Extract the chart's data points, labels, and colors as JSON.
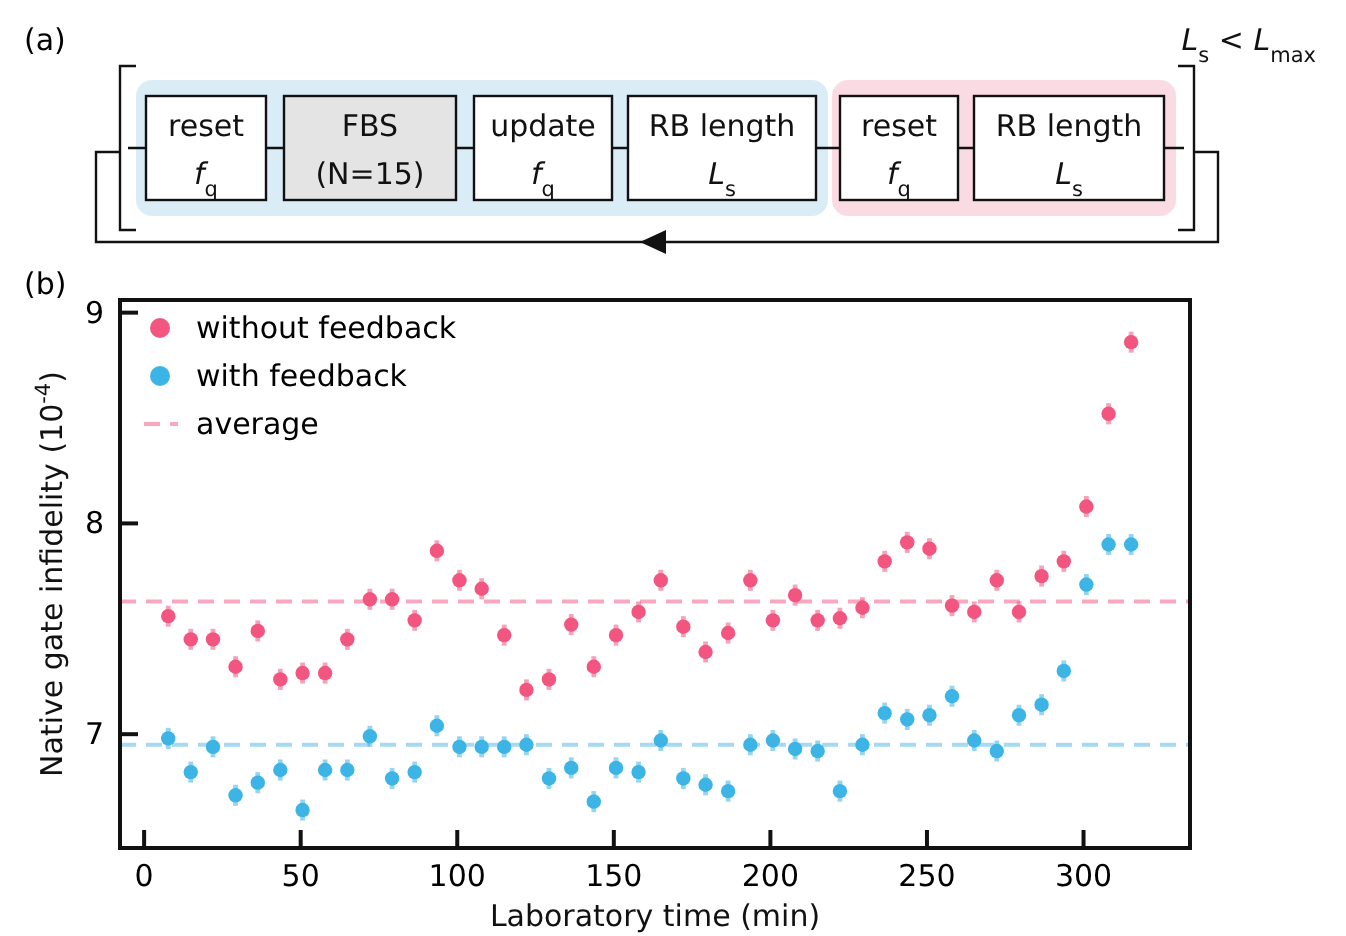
{
  "chart_data": [
    {
      "type": "other",
      "title": "(a)",
      "annotations": [
        "reset",
        "f$_{q}$",
        "FBS",
        "(N=15)",
        "update",
        "f$_{q}$",
        "RB length",
        "L$_{s}$",
        "reset",
        "f$_{q}$",
        "RB length",
        "L$_{s}$",
        "L$_{s}$ < L$_{max}$"
      ]
    },
    {
      "type": "scatter",
      "title": "(b)",
      "xlabel": "Laboratory time (min)",
      "ylabel": "Native gate infidelity (10$^{-4}$)",
      "x": [
        7.7,
        14.9,
        22.0,
        29.2,
        36.3,
        43.5,
        50.6,
        57.8,
        64.9,
        72.1,
        79.2,
        86.4,
        93.5,
        100.7,
        107.8,
        115.0,
        122.1,
        129.3,
        136.4,
        143.6,
        150.7,
        157.9,
        165.0,
        172.2,
        179.3,
        186.5,
        193.6,
        200.8,
        207.9,
        215.1,
        222.2,
        229.4,
        236.5,
        243.7,
        250.8,
        258.0,
        265.1,
        272.3,
        279.4,
        286.6,
        293.7,
        300.9,
        308.0,
        315.2
      ],
      "series": [
        {
          "name": "without feedback",
          "color": "#f2557f",
          "values": [
            7.56,
            7.45,
            7.45,
            7.32,
            7.49,
            7.26,
            7.29,
            7.29,
            7.45,
            7.64,
            7.64,
            7.54,
            7.87,
            7.73,
            7.69,
            7.47,
            7.21,
            7.26,
            7.52,
            7.32,
            7.47,
            7.58,
            7.73,
            7.51,
            7.39,
            7.48,
            7.73,
            7.54,
            7.66,
            7.54,
            7.55,
            7.6,
            7.82,
            7.91,
            7.88,
            7.61,
            7.58,
            7.73,
            7.58,
            7.75,
            7.82,
            8.08,
            8.52,
            8.86
          ],
          "errors": [
            0.05,
            0.05,
            0.05,
            0.05,
            0.05,
            0.05,
            0.05,
            0.05,
            0.05,
            0.05,
            0.05,
            0.05,
            0.05,
            0.05,
            0.05,
            0.05,
            0.05,
            0.05,
            0.05,
            0.05,
            0.05,
            0.05,
            0.05,
            0.05,
            0.05,
            0.05,
            0.05,
            0.05,
            0.05,
            0.05,
            0.05,
            0.05,
            0.05,
            0.05,
            0.05,
            0.05,
            0.05,
            0.05,
            0.05,
            0.05,
            0.05,
            0.05,
            0.05,
            0.05
          ]
        },
        {
          "name": "with feedback",
          "color": "#3cb4e6",
          "values": [
            6.98,
            6.82,
            6.94,
            6.71,
            6.77,
            6.83,
            6.64,
            6.83,
            6.83,
            6.99,
            6.79,
            6.82,
            7.04,
            6.94,
            6.94,
            6.94,
            6.95,
            6.79,
            6.84,
            6.68,
            6.84,
            6.82,
            6.97,
            6.79,
            6.76,
            6.73,
            6.95,
            6.97,
            6.93,
            6.92,
            6.73,
            6.95,
            7.1,
            7.07,
            7.09,
            7.18,
            6.97,
            6.92,
            7.09,
            7.14,
            7.3,
            7.71,
            7.9,
            7.9
          ],
          "errors": [
            0.05,
            0.05,
            0.05,
            0.05,
            0.05,
            0.05,
            0.05,
            0.05,
            0.05,
            0.05,
            0.05,
            0.05,
            0.05,
            0.05,
            0.05,
            0.05,
            0.05,
            0.05,
            0.05,
            0.05,
            0.05,
            0.05,
            0.05,
            0.05,
            0.05,
            0.05,
            0.05,
            0.05,
            0.05,
            0.05,
            0.05,
            0.05,
            0.05,
            0.05,
            0.05,
            0.05,
            0.05,
            0.05,
            0.05,
            0.05,
            0.05,
            0.05,
            0.05,
            0.05
          ]
        }
      ],
      "ref_lines": [
        {
          "axis": "y",
          "value": 7.63,
          "label": "average",
          "color": "#f9a8bf",
          "line_style": "dashed"
        },
        {
          "axis": "y",
          "value": 6.95,
          "color": "#a6daf2",
          "line_style": "dashed"
        }
      ],
      "xlim": [
        -7.7,
        334
      ],
      "xticks": [
        0,
        50,
        100,
        150,
        200,
        250,
        300
      ],
      "ylim": [
        6.46,
        9.06
      ],
      "yticks": [
        7,
        8,
        9
      ],
      "marker": "circle",
      "legend": "top left",
      "grid": false
    }
  ]
}
